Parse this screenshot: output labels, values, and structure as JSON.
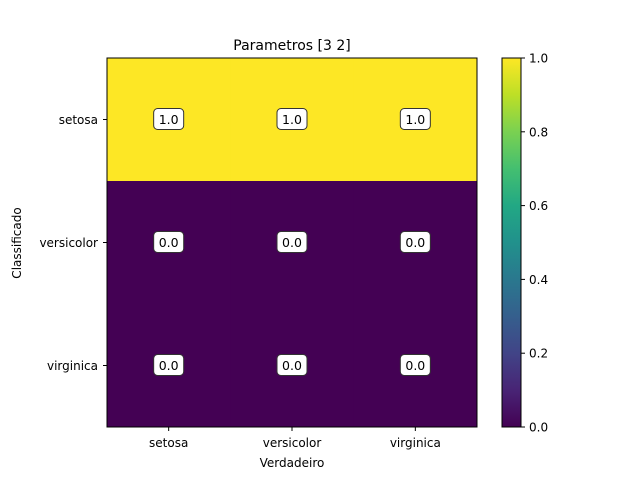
{
  "chart_data": {
    "type": "heatmap",
    "title": "Parametros [3 2]",
    "xlabel": "Verdadeiro",
    "ylabel": "Classificado",
    "x_categories": [
      "setosa",
      "versicolor",
      "virginica"
    ],
    "y_categories": [
      "setosa",
      "versicolor",
      "virginica"
    ],
    "values": [
      [
        1.0,
        1.0,
        1.0
      ],
      [
        0.0,
        0.0,
        0.0
      ],
      [
        0.0,
        0.0,
        0.0
      ]
    ],
    "cell_labels": [
      [
        "1.0",
        "1.0",
        "1.0"
      ],
      [
        "0.0",
        "0.0",
        "0.0"
      ],
      [
        "0.0",
        "0.0",
        "0.0"
      ]
    ],
    "colormap": "viridis",
    "color_low": "#440154",
    "color_high": "#fde725",
    "colorbar": {
      "range": [
        0.0,
        1.0
      ],
      "ticks": [
        "0.0",
        "0.2",
        "0.4",
        "0.6",
        "0.8",
        "1.0"
      ]
    }
  }
}
